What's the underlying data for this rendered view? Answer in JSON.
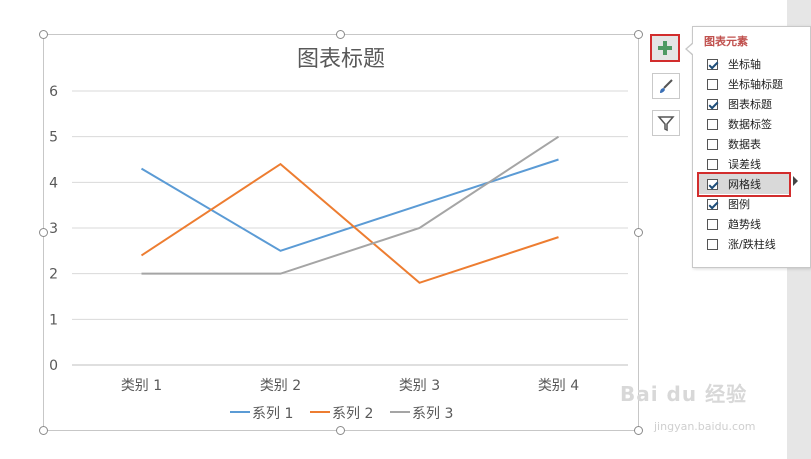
{
  "chart_data": {
    "type": "line",
    "title": "图表标题",
    "categories": [
      "类别 1",
      "类别 2",
      "类别 3",
      "类别 4"
    ],
    "series": [
      {
        "name": "系列 1",
        "values": [
          4.3,
          2.5,
          3.5,
          4.5
        ],
        "color": "#5b9bd5"
      },
      {
        "name": "系列 2",
        "values": [
          2.4,
          4.4,
          1.8,
          2.8
        ],
        "color": "#ed7d31"
      },
      {
        "name": "系列 3",
        "values": [
          2,
          2,
          3,
          5
        ],
        "color": "#a5a5a5"
      }
    ],
    "yticks": [
      "0",
      "1",
      "2",
      "3",
      "4",
      "5",
      "6"
    ],
    "ylim": [
      0,
      6
    ],
    "grid": true,
    "legend": "bottom"
  },
  "side_buttons": {
    "add_icon": "plus-icon",
    "brush_icon": "brush-icon",
    "filter_icon": "filter-icon"
  },
  "panel": {
    "title": "图表元素",
    "options": [
      {
        "label": "坐标轴",
        "checked": true
      },
      {
        "label": "坐标轴标题",
        "checked": false
      },
      {
        "label": "图表标题",
        "checked": true
      },
      {
        "label": "数据标签",
        "checked": false
      },
      {
        "label": "数据表",
        "checked": false
      },
      {
        "label": "误差线",
        "checked": false
      },
      {
        "label": "网格线",
        "checked": true
      },
      {
        "label": "图例",
        "checked": true
      },
      {
        "label": "趋势线",
        "checked": false
      },
      {
        "label": "涨/跌柱线",
        "checked": false
      }
    ]
  },
  "colors": {
    "highlight_border": "#d22d2d",
    "panel_title": "#c0504d",
    "plus": "#4f9a63"
  },
  "watermark": {
    "brand": "Bai du 经验",
    "url": "jingyan.baidu.com"
  }
}
